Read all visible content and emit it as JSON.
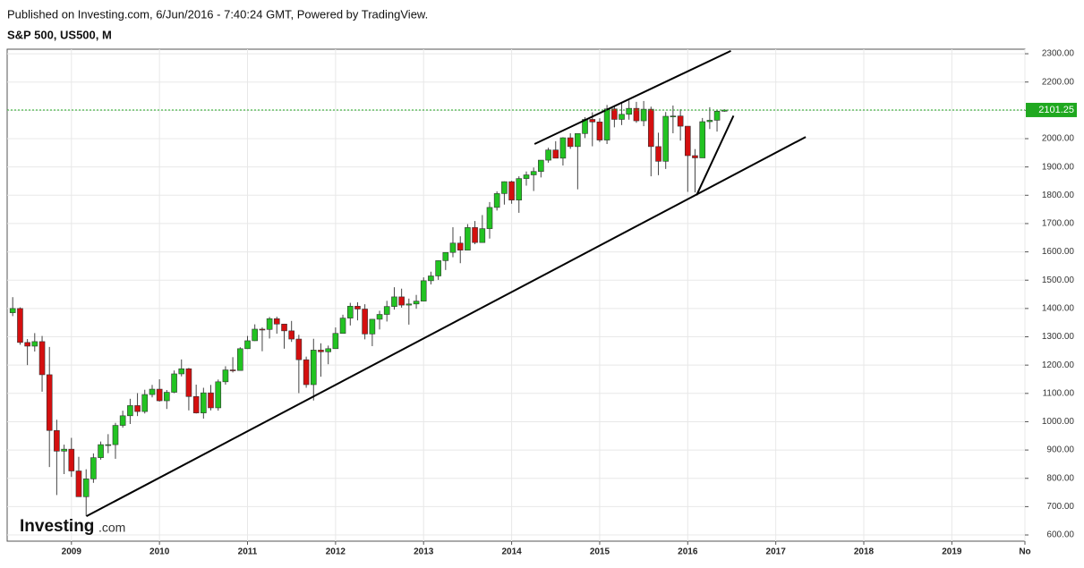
{
  "header": {
    "published": "Published on Investing.com, 6/Jun/2016 - 7:40:24 GMT, Powered by TradingView.",
    "symbol": "S&P 500, US500, M"
  },
  "logo": {
    "name": "Investing",
    "suffix": ".com"
  },
  "chart_data": {
    "type": "candlestick",
    "up_color": "#22c322",
    "down_color": "#d40f0f",
    "grid": true,
    "last_price": 2101.25,
    "last_price_color": "#1fa81f",
    "xlim": [
      2008.27,
      2019.83
    ],
    "xticks": [
      2009,
      2010,
      2011,
      2012,
      2013,
      2014,
      2015,
      2016,
      2017,
      2018,
      2019,
      {
        "value": 2019.83,
        "label": "No"
      }
    ],
    "ylim": [
      578,
      2316
    ],
    "yticks": [
      {
        "value": 600,
        "label": "600.00"
      },
      {
        "value": 700,
        "label": "700.00"
      },
      {
        "value": 800,
        "label": "800.00"
      },
      {
        "value": 900,
        "label": "900.00"
      },
      {
        "value": 1000,
        "label": "1000.00"
      },
      {
        "value": 1100,
        "label": "1100.00"
      },
      {
        "value": 1200,
        "label": "1200.00"
      },
      {
        "value": 1300,
        "label": "1300.00"
      },
      {
        "value": 1400,
        "label": "1400.00"
      },
      {
        "value": 1500,
        "label": "1500.00"
      },
      {
        "value": 1600,
        "label": "1600.00"
      },
      {
        "value": 1700,
        "label": "1700.00"
      },
      {
        "value": 1800,
        "label": "1800.00"
      },
      {
        "value": 1900,
        "label": "1900.00"
      },
      {
        "value": 2000,
        "label": "2000.00"
      },
      {
        "value": 2100,
        "label": "2100.00"
      },
      {
        "value": 2200,
        "label": "2200.00"
      },
      {
        "value": 2300,
        "label": "2300.00"
      }
    ],
    "x": [
      2008.333,
      2008.417,
      2008.5,
      2008.583,
      2008.667,
      2008.75,
      2008.833,
      2008.917,
      2009,
      2009.083,
      2009.167,
      2009.25,
      2009.333,
      2009.417,
      2009.5,
      2009.583,
      2009.667,
      2009.75,
      2009.833,
      2009.917,
      2010,
      2010.083,
      2010.167,
      2010.25,
      2010.333,
      2010.417,
      2010.5,
      2010.583,
      2010.667,
      2010.75,
      2010.833,
      2010.917,
      2011,
      2011.083,
      2011.167,
      2011.25,
      2011.333,
      2011.417,
      2011.5,
      2011.583,
      2011.667,
      2011.75,
      2011.833,
      2011.917,
      2012,
      2012.083,
      2012.167,
      2012.25,
      2012.333,
      2012.417,
      2012.5,
      2012.583,
      2012.667,
      2012.75,
      2012.833,
      2012.917,
      2013,
      2013.083,
      2013.167,
      2013.25,
      2013.333,
      2013.417,
      2013.5,
      2013.583,
      2013.667,
      2013.75,
      2013.833,
      2013.917,
      2014,
      2014.083,
      2014.167,
      2014.25,
      2014.333,
      2014.417,
      2014.5,
      2014.583,
      2014.667,
      2014.75,
      2014.833,
      2014.917,
      2015,
      2015.083,
      2015.167,
      2015.25,
      2015.333,
      2015.417,
      2015.5,
      2015.583,
      2015.667,
      2015.75,
      2015.833,
      2015.917,
      2016,
      2016.083,
      2016.167,
      2016.25,
      2016.333,
      2016.417
    ],
    "open": [
      1385,
      1400,
      1280,
      1267,
      1283,
      1166,
      969,
      896,
      903,
      826,
      735,
      798,
      873,
      919,
      919,
      987,
      1021,
      1057,
      1036,
      1096,
      1115,
      1074,
      1104,
      1169,
      1187,
      1089,
      1031,
      1102,
      1049,
      1141,
      1183,
      1181,
      1258,
      1286,
      1327,
      1326,
      1364,
      1345,
      1321,
      1292,
      1219,
      1131,
      1253,
      1247,
      1258,
      1312,
      1366,
      1408,
      1398,
      1310,
      1362,
      1379,
      1407,
      1441,
      1412,
      1416,
      1426,
      1498,
      1515,
      1569,
      1598,
      1631,
      1606,
      1686,
      1633,
      1682,
      1757,
      1806,
      1848,
      1783,
      1859,
      1872,
      1884,
      1924,
      1960,
      1931,
      2003,
      1972,
      2018,
      2068,
      2059,
      1995,
      2105,
      2068,
      2086,
      2107,
      2063,
      2104,
      1972,
      1920,
      2079,
      2080,
      2044,
      1940,
      1932,
      2060,
      2065,
      2097
    ],
    "high": [
      1440,
      1404,
      1292,
      1313,
      1303,
      1264,
      1007,
      919,
      943,
      876,
      832,
      888,
      930,
      956,
      996,
      1039,
      1081,
      1101,
      1113,
      1130,
      1150,
      1112,
      1181,
      1220,
      1190,
      1131,
      1120,
      1130,
      1149,
      1196,
      1228,
      1263,
      1303,
      1344,
      1333,
      1370,
      1371,
      1346,
      1356,
      1307,
      1230,
      1293,
      1277,
      1269,
      1333,
      1378,
      1420,
      1422,
      1415,
      1363,
      1392,
      1427,
      1475,
      1470,
      1435,
      1448,
      1510,
      1530,
      1570,
      1597,
      1687,
      1655,
      1698,
      1709,
      1730,
      1776,
      1814,
      1849,
      1851,
      1867,
      1884,
      1898,
      1924,
      1968,
      1991,
      2005,
      2019,
      2018,
      2076,
      2093,
      2072,
      2119,
      2117,
      2126,
      2135,
      2130,
      2133,
      2113,
      2021,
      2094,
      2117,
      2104,
      2044,
      1963,
      2073,
      2111,
      2100,
      2104
    ],
    "low": [
      1373,
      1272,
      1200,
      1248,
      1106,
      840,
      741,
      815,
      805,
      735,
      667,
      784,
      866,
      889,
      869,
      979,
      992,
      1020,
      1029,
      1086,
      1071,
      1045,
      1101,
      1160,
      1040,
      1029,
      1011,
      1040,
      1039,
      1131,
      1174,
      1181,
      1257,
      1285,
      1249,
      1294,
      1311,
      1258,
      1282,
      1101,
      1120,
      1075,
      1159,
      1203,
      1258,
      1311,
      1340,
      1358,
      1291,
      1267,
      1326,
      1354,
      1396,
      1403,
      1343,
      1399,
      1426,
      1485,
      1501,
      1536,
      1581,
      1560,
      1605,
      1627,
      1633,
      1647,
      1746,
      1767,
      1770,
      1738,
      1834,
      1815,
      1863,
      1915,
      1931,
      1905,
      1964,
      1821,
      2002,
      1973,
      1988,
      1981,
      2040,
      2048,
      2067,
      2056,
      2044,
      1867,
      1871,
      1893,
      2019,
      1993,
      1812,
      1810,
      1932,
      2034,
      2025,
      2095
    ],
    "close": [
      1400,
      1280,
      1267,
      1283,
      1166,
      969,
      896,
      903,
      826,
      735,
      798,
      873,
      919,
      919,
      987,
      1021,
      1057,
      1036,
      1096,
      1115,
      1074,
      1104,
      1169,
      1187,
      1089,
      1031,
      1102,
      1049,
      1141,
      1183,
      1181,
      1258,
      1286,
      1327,
      1326,
      1364,
      1345,
      1321,
      1292,
      1219,
      1131,
      1253,
      1247,
      1258,
      1312,
      1366,
      1408,
      1398,
      1310,
      1362,
      1379,
      1407,
      1441,
      1412,
      1416,
      1426,
      1498,
      1515,
      1569,
      1598,
      1631,
      1606,
      1686,
      1633,
      1682,
      1757,
      1806,
      1848,
      1783,
      1859,
      1872,
      1884,
      1924,
      1960,
      1931,
      2003,
      1972,
      2018,
      2068,
      2059,
      1995,
      2105,
      2068,
      2086,
      2107,
      2063,
      2104,
      1972,
      1920,
      2079,
      2080,
      2044,
      1940,
      1932,
      2060,
      2065,
      2097,
      2101
    ],
    "trendlines": [
      {
        "x": [
          2009.17,
          2017.34
        ],
        "y": [
          666,
          2006
        ]
      },
      {
        "x": [
          2014.26,
          2016.49
        ],
        "y": [
          1981,
          2310
        ]
      },
      {
        "x": [
          2016.1,
          2016.52
        ],
        "y": [
          1800,
          2081
        ]
      }
    ]
  }
}
